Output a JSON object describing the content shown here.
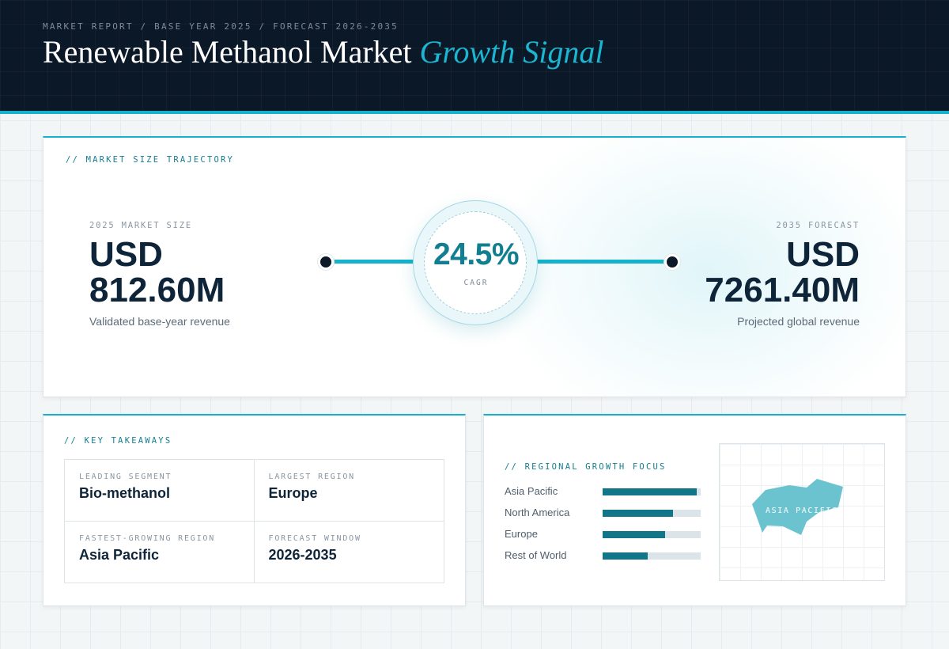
{
  "header": {
    "eyebrow": "MARKET REPORT / BASE YEAR 2025 / FORECAST 2026-2035",
    "title_main": "Renewable Methanol Market",
    "title_accent": "Growth Signal"
  },
  "trajectory": {
    "section_label": "// MARKET SIZE TRAJECTORY",
    "base": {
      "label": "2025 MARKET SIZE",
      "currency": "USD",
      "value": "812.60M",
      "caption": "Validated base-year revenue"
    },
    "forecast": {
      "label": "2035 FORECAST",
      "currency": "USD",
      "value": "7261.40M",
      "caption": "Projected global revenue"
    },
    "cagr": {
      "value": "24.5%",
      "label": "CAGR"
    }
  },
  "takeaways": {
    "section_label": "// KEY TAKEAWAYS",
    "items": [
      {
        "label": "LEADING SEGMENT",
        "value": "Bio-methanol"
      },
      {
        "label": "LARGEST REGION",
        "value": "Europe"
      },
      {
        "label": "FASTEST-GROWING REGION",
        "value": "Asia Pacific"
      },
      {
        "label": "FORECAST WINDOW",
        "value": "2026-2035"
      }
    ]
  },
  "regional": {
    "section_label": "// REGIONAL GROWTH FOCUS",
    "map_label": "ASIA PACIFIC"
  },
  "colors": {
    "accent": "#14b2cc",
    "navy": "#0b1827",
    "bar_fill": "#117788",
    "bar_track": "#dbe4e8",
    "map_shape": "#6cc3d0"
  },
  "chart_data": {
    "type": "bar",
    "orientation": "horizontal",
    "categories": [
      "Asia Pacific",
      "North America",
      "Europe",
      "Rest of World"
    ],
    "values": [
      0.96,
      0.72,
      0.64,
      0.46
    ],
    "xlim": [
      0,
      1
    ],
    "grid": false
  }
}
